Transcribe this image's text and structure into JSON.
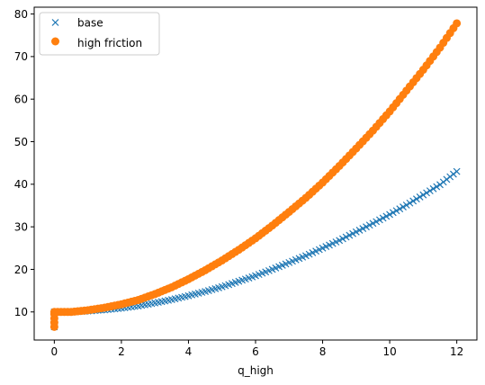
{
  "chart_data": {
    "type": "scatter",
    "title": "",
    "xlabel": "q_high",
    "ylabel": "",
    "xlim": [
      -0.6,
      12.6
    ],
    "ylim": [
      3.4,
      81.6
    ],
    "xticks": [
      0,
      2,
      4,
      6,
      8,
      10,
      12
    ],
    "yticks": [
      10,
      20,
      30,
      40,
      50,
      60,
      70,
      80
    ],
    "grid": false,
    "legend": "upper-left",
    "series": [
      {
        "name": "base",
        "marker": "x",
        "color": "#1f77b4",
        "points": [
          [
            0,
            6.5
          ],
          [
            0,
            7.5
          ],
          [
            0,
            8.5
          ],
          [
            0,
            9.5
          ],
          [
            0,
            10.0
          ],
          [
            0.5,
            10.0
          ],
          [
            1.0,
            10.2
          ],
          [
            1.5,
            10.5
          ],
          [
            2.0,
            10.9
          ],
          [
            2.5,
            11.4
          ],
          [
            3.0,
            12.1
          ],
          [
            3.5,
            12.9
          ],
          [
            4.0,
            13.8
          ],
          [
            4.5,
            14.8
          ],
          [
            5.0,
            15.9
          ],
          [
            5.5,
            17.2
          ],
          [
            6.0,
            18.5
          ],
          [
            6.5,
            20.0
          ],
          [
            7.0,
            21.6
          ],
          [
            7.5,
            23.2
          ],
          [
            8.0,
            25.0
          ],
          [
            8.5,
            26.8
          ],
          [
            9.0,
            28.8
          ],
          [
            9.5,
            30.8
          ],
          [
            10.0,
            32.9
          ],
          [
            10.5,
            35.1
          ],
          [
            11.0,
            37.5
          ],
          [
            11.5,
            39.9
          ],
          [
            12.0,
            43.0
          ]
        ]
      },
      {
        "name": "high friction",
        "marker": "o",
        "color": "#ff7f0e",
        "points": [
          [
            0,
            6.5
          ],
          [
            0,
            7.5
          ],
          [
            0,
            8.5
          ],
          [
            0,
            9.5
          ],
          [
            0,
            10.0
          ],
          [
            0.5,
            10.0
          ],
          [
            1.0,
            10.4
          ],
          [
            1.5,
            11.0
          ],
          [
            2.0,
            11.8
          ],
          [
            2.5,
            12.8
          ],
          [
            3.0,
            14.2
          ],
          [
            3.5,
            15.8
          ],
          [
            4.0,
            17.7
          ],
          [
            4.5,
            19.8
          ],
          [
            5.0,
            22.1
          ],
          [
            5.5,
            24.6
          ],
          [
            6.0,
            27.3
          ],
          [
            6.5,
            30.3
          ],
          [
            7.0,
            33.5
          ],
          [
            7.5,
            36.8
          ],
          [
            8.0,
            40.4
          ],
          [
            8.5,
            44.3
          ],
          [
            9.0,
            48.4
          ],
          [
            9.5,
            52.6
          ],
          [
            10.0,
            57.1
          ],
          [
            10.5,
            62.0
          ],
          [
            11.0,
            66.9
          ],
          [
            11.5,
            72.1
          ],
          [
            12.0,
            77.8
          ]
        ]
      }
    ]
  }
}
